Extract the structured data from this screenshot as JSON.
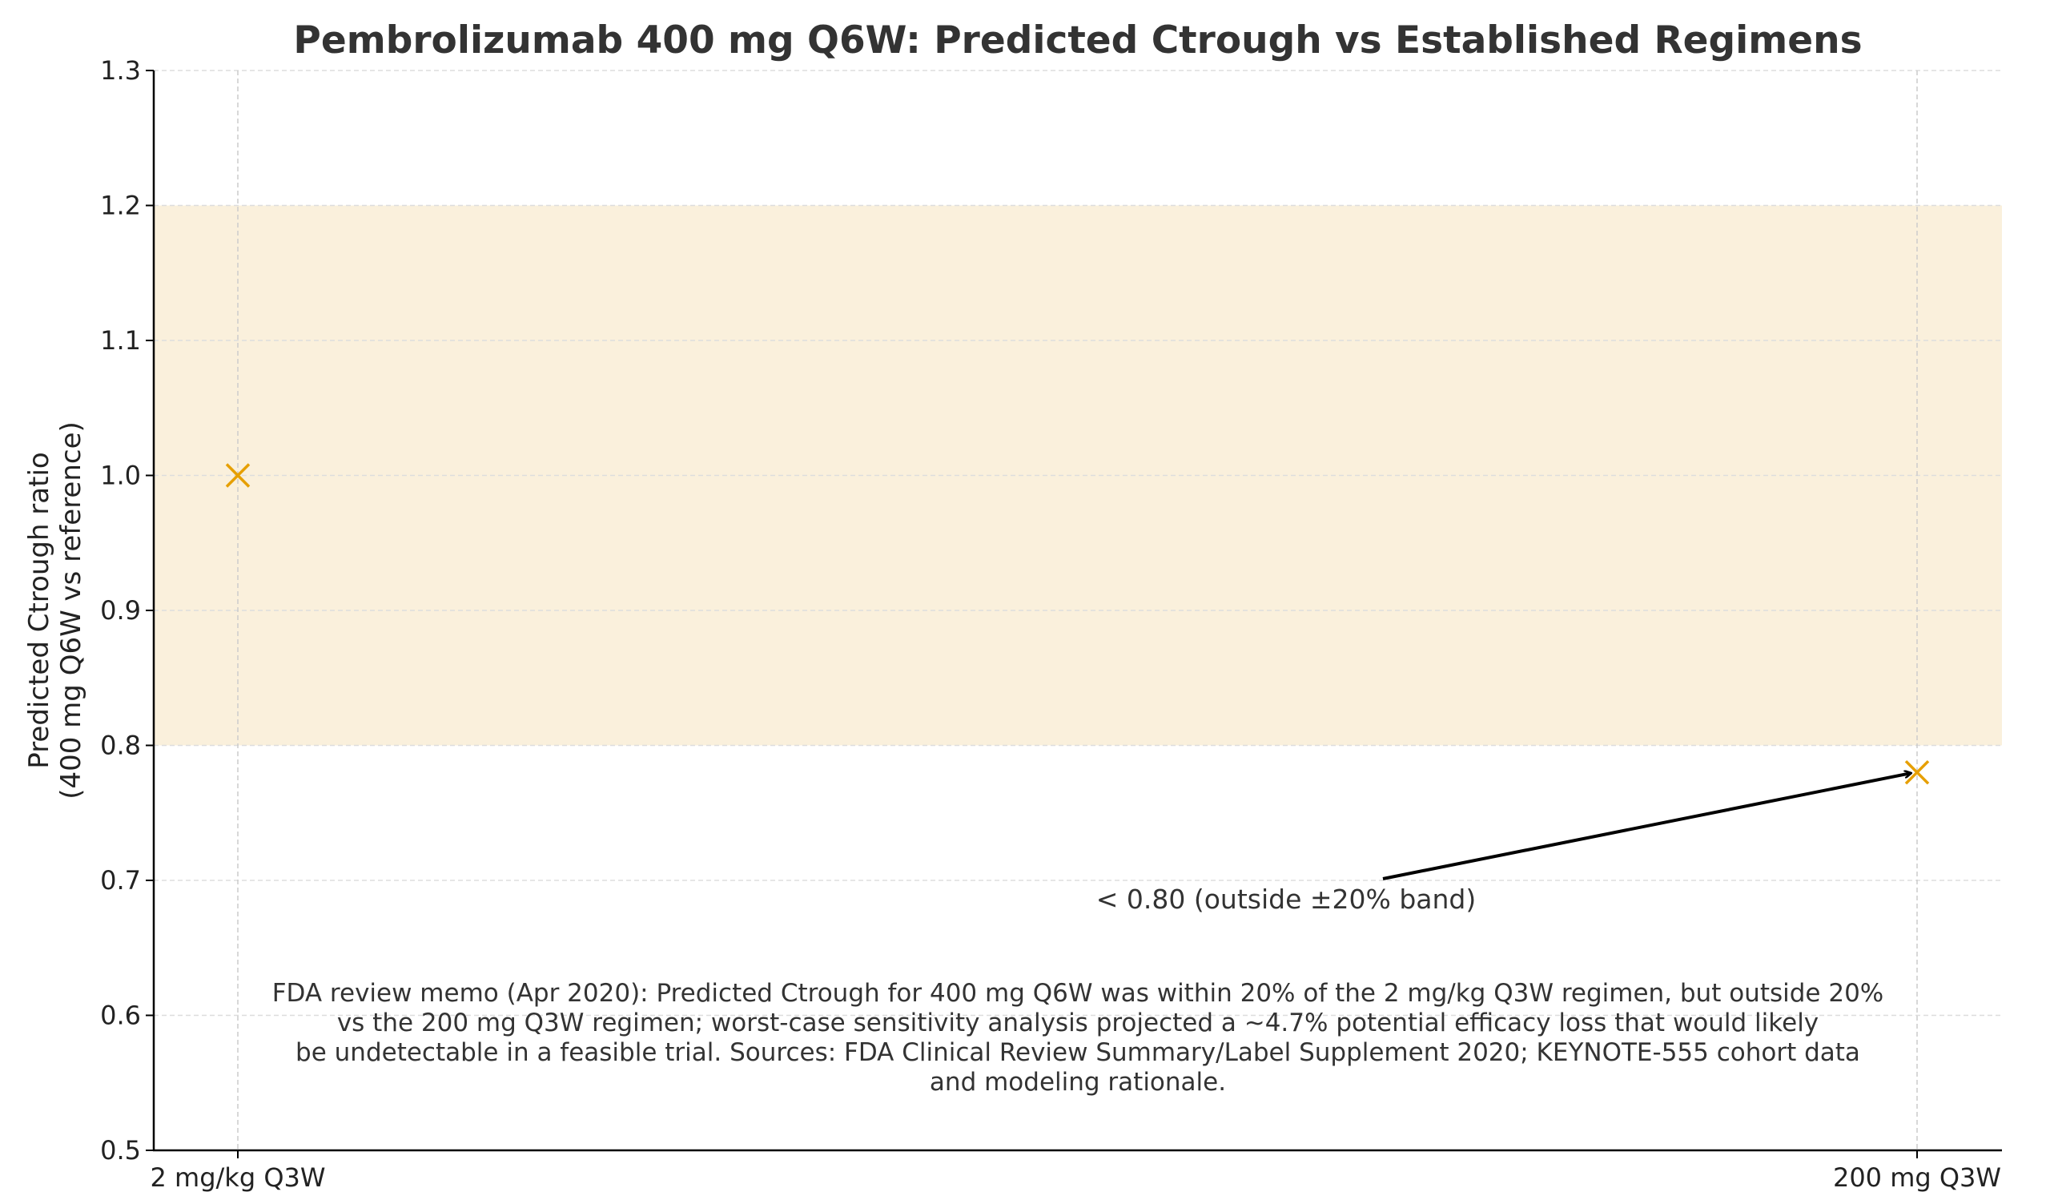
{
  "chart_data": {
    "type": "scatter",
    "title": "Pembrolizumab 400 mg Q6W: Predicted Ctrough vs Established Regimens",
    "xlabel": "",
    "ylabel_lines": [
      "Predicted Ctrough ratio",
      "(400 mg Q6W vs reference)"
    ],
    "categories": [
      "2 mg/kg Q3W",
      "200 mg Q3W"
    ],
    "values": [
      1.0,
      0.78
    ],
    "ylim": [
      0.5,
      1.3
    ],
    "yticks": [
      "0.5",
      "0.6",
      "0.7",
      "0.8",
      "0.9",
      "1.0",
      "1.1",
      "1.2",
      "1.3"
    ],
    "band": {
      "low": 0.8,
      "high": 1.2,
      "color": "#FAF0DC"
    },
    "marker": "x",
    "marker_color": "#E69F00",
    "grid": true,
    "annotation": {
      "text": "< 0.80 (outside ±20% band)",
      "target_category": "200 mg Q3W",
      "target_value": 0.78
    },
    "note_lines": [
      "FDA review memo (Apr 2020): Predicted Ctrough for 400 mg Q6W was within 20% of the 2 mg/kg Q3W regimen, but outside 20%",
      "vs the 200 mg Q3W regimen; worst-case sensitivity analysis projected a ~4.7% potential efficacy loss that would likely",
      "be undetectable in a feasible trial. Sources: FDA Clinical Review Summary/Label Supplement 2020; KEYNOTE-555 cohort data",
      "and modeling rationale."
    ]
  }
}
